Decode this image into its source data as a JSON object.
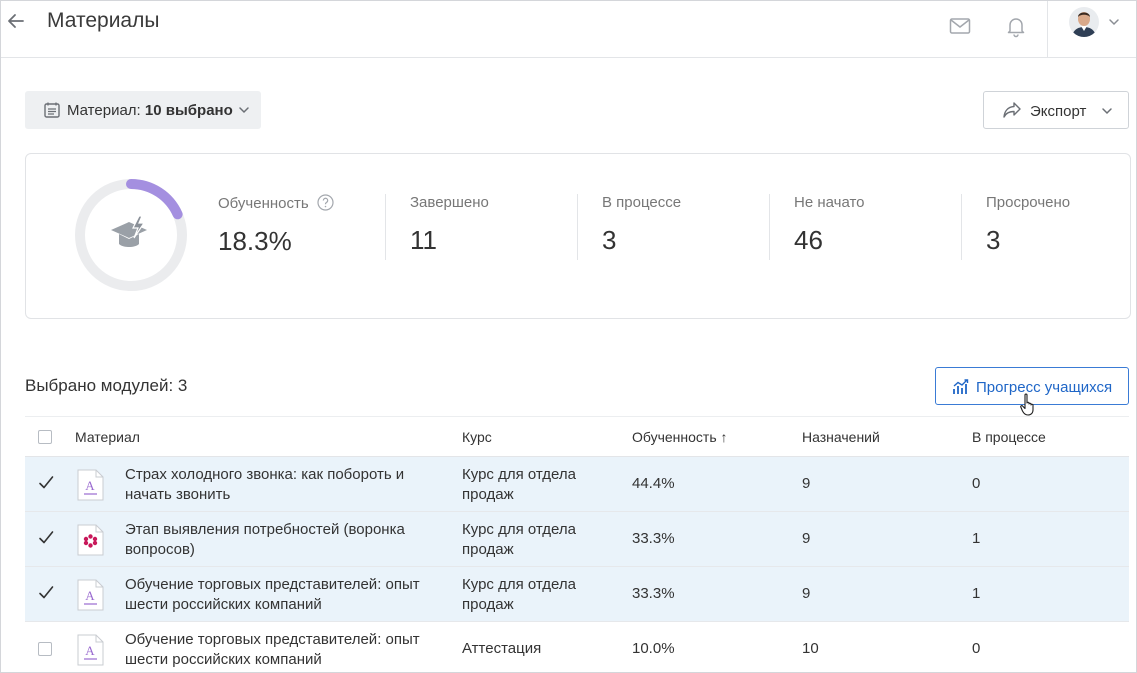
{
  "header": {
    "title": "Материалы",
    "icons": [
      "back-arrow-icon",
      "mail-icon",
      "bell-icon",
      "avatar",
      "chevron-down-icon"
    ]
  },
  "filter": {
    "label": "Материал:",
    "value": "10 выбрано"
  },
  "export": {
    "label": "Экспорт"
  },
  "stats": {
    "progress_fraction": 0.183,
    "progress_color": "#a48fe0",
    "items": [
      {
        "label": "Обученность",
        "value": "18.3%"
      },
      {
        "label": "Завершено",
        "value": "11"
      },
      {
        "label": "В процессе",
        "value": "3"
      },
      {
        "label": "Не начато",
        "value": "46"
      },
      {
        "label": "Просрочено",
        "value": "3"
      }
    ]
  },
  "section": {
    "title": "Выбрано модулей: 3",
    "progress_button": "Прогресс учащихся"
  },
  "table": {
    "columns": [
      "Материал",
      "Курс",
      "Обученность",
      "Назначений",
      "В процессе"
    ],
    "sort_indicator": "↑",
    "rows": [
      {
        "checked": true,
        "icon": "document-icon",
        "name": "Страх холодного звонка: как побороть и начать звонить",
        "course": "Курс для отдела продаж",
        "training": "44.4%",
        "assigned": "9",
        "in_progress": "0"
      },
      {
        "checked": true,
        "icon": "flower-icon",
        "name": "Этап выявления потребностей (воронка вопросов)",
        "course": "Курс для отдела продаж",
        "training": "33.3%",
        "assigned": "9",
        "in_progress": "1"
      },
      {
        "checked": true,
        "icon": "document-icon",
        "name": "Обучение торговых представителей: опыт шести российских компаний",
        "course": "Курс для отдела продаж",
        "training": "33.3%",
        "assigned": "9",
        "in_progress": "1"
      },
      {
        "checked": false,
        "icon": "document-icon",
        "name": "Обучение торговых представителей: опыт шести российских компаний",
        "course": "Аттестация",
        "training": "10.0%",
        "assigned": "10",
        "in_progress": "0"
      }
    ]
  },
  "colors": {
    "accent": "#1f66c7",
    "selected_row": "#eaf3fa",
    "document_icon": "#9a6bd0",
    "flower_icon": "#c8185a"
  }
}
